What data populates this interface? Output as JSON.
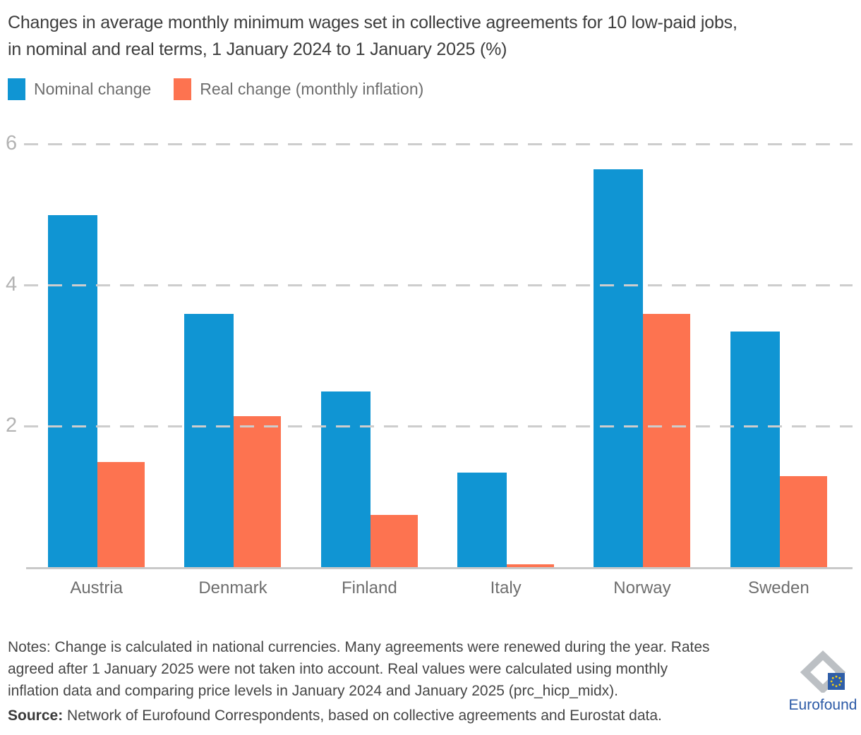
{
  "title": "Changes in average monthly minimum wages set in collective agreements for 10 low-paid jobs,\nin nominal and real terms, 1 January 2024 to 1 January 2025 (%)",
  "legend": [
    {
      "label": "Nominal change",
      "color": "#1095d3"
    },
    {
      "label": "Real change (monthly inflation)",
      "color": "#fd7350"
    }
  ],
  "chart_data": {
    "type": "bar",
    "title": "Changes in average monthly minimum wages set in collective agreements for 10 low-paid jobs, in nominal and real terms, 1 January 2024 to 1 January 2025 (%)",
    "categories": [
      "Austria",
      "Denmark",
      "Finland",
      "Italy",
      "Norway",
      "Sweden"
    ],
    "series": [
      {
        "name": "Nominal change",
        "color": "#1095d3",
        "values": [
          5.0,
          3.6,
          2.5,
          1.35,
          5.65,
          3.35
        ]
      },
      {
        "name": "Real change (monthly inflation)",
        "color": "#fd7350",
        "values": [
          1.5,
          2.15,
          0.75,
          0.05,
          3.6,
          1.3
        ]
      }
    ],
    "xlabel": "",
    "ylabel": "",
    "ylim": [
      0,
      6
    ],
    "yticks": [
      2,
      4,
      6
    ],
    "grid": "horizontal-dashed",
    "legend_position": "top-left"
  },
  "notes": "Notes: Change is calculated in national currencies. Many agreements were renewed during the year. Rates\nagreed after 1 January 2025 were not taken into account. Real values were calculated using monthly\ninflation data and comparing price levels in January 2024 and January 2025 (prc_hicp_midx).",
  "source": {
    "label": "Source:",
    "text": " Network of Eurofound Correspondents, based on collective agreements and Eurostat data."
  },
  "logo": {
    "text": "Eurofound"
  }
}
